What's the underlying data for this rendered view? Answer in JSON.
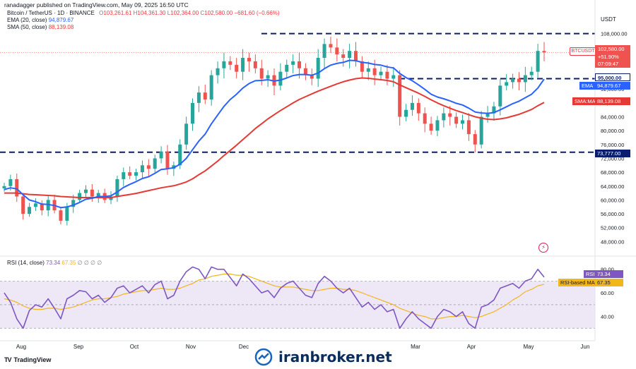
{
  "header": {
    "publisher_line": "ranadagger published on TradingView.com, May 09, 2025 16:50 UTC"
  },
  "symbol_legend": {
    "symbol": "Bitcoin / TetherUS · 1D · BINANCE",
    "open_label": "O",
    "open": "103,261.61",
    "high_label": "H",
    "high": "104,361.30",
    "low_label": "L",
    "low": "102,364.00",
    "close_label": "C",
    "close": "102,580.00",
    "change": "−681.60 (−0.66%)"
  },
  "indicators": {
    "ema": {
      "label": "EMA (20, close)",
      "value": "94,879.67",
      "color": "#2962ff"
    },
    "sma": {
      "label": "SMA (50, close)",
      "value": "88,139.08",
      "color": "#e53935"
    },
    "rsi": {
      "label": "RSI (14, close)",
      "value": "73.34",
      "ma_value": "67.35",
      "zeros": "∅ ∅ ∅ ∅",
      "color": "#7e57c2",
      "ma_color": "#f2b61d"
    }
  },
  "price_axis": {
    "currency": "USDT",
    "ticks": [
      "108,000.00",
      "104,000.00",
      "96,000.00",
      "92,000.00",
      "88,000.00",
      "84,000.00",
      "80,000.00",
      "76,000.00",
      "72,000.00",
      "68,000.00",
      "64,000.00",
      "60,000.00",
      "56,000.00",
      "52,000.00",
      "48,000.00"
    ],
    "ticker_tag": "BTCUSDT",
    "last_price": "102,580.00",
    "last_change": "+51.90%",
    "countdown": "07:09:47",
    "level_95k": "95,000.00",
    "ema_tag_label": "EMA",
    "ema_tag_value": "94,879.67",
    "sma_tag_label": "SMA:MA",
    "sma_tag_value": "88,139.08",
    "level_73k": "73,777.00",
    "rsi_ticks": [
      "80.00",
      "60.00",
      "40.00"
    ],
    "rsi_tag_label": "RSI",
    "rsi_tag_value": "73.34",
    "rsi_ma_tag_label": "RSI-based MA",
    "rsi_ma_tag_value": "67.35"
  },
  "time_axis": {
    "labels": [
      "Aug",
      "Sep",
      "Oct",
      "Nov",
      "Dec",
      "Mar",
      "Apr",
      "May",
      "Jun"
    ]
  },
  "footer": {
    "brand": "TradingView",
    "watermark": "iranbroker.net"
  },
  "colors": {
    "up": "#26a69a",
    "down": "#ef5350",
    "ema": "#2962ff",
    "sma": "#e53935",
    "level": "#0b1d6e",
    "rsi": "#7e57c2",
    "rsi_ma": "#f2b61d",
    "rsi_band": "#ede7f6"
  },
  "chart_data": {
    "type": "candlestick",
    "title": "Bitcoin / TetherUS · 1D · BINANCE",
    "xlabel": "",
    "ylabel": "USDT",
    "ylim": [
      44000,
      112000
    ],
    "horizontal_levels": [
      108000,
      95000,
      73777
    ],
    "x_labels": [
      "Aug",
      "Sep",
      "Oct",
      "Nov",
      "Dec",
      "Mar",
      "Apr",
      "May",
      "Jun"
    ],
    "close_path": [
      64000,
      66000,
      61000,
      56000,
      58000,
      59000,
      57000,
      60000,
      57000,
      54000,
      58000,
      60000,
      62000,
      63000,
      61000,
      62000,
      60000,
      61000,
      66000,
      68000,
      67000,
      68000,
      70000,
      69000,
      72000,
      74000,
      69000,
      70000,
      76000,
      82000,
      88000,
      91000,
      89000,
      96000,
      98000,
      100000,
      99000,
      97000,
      101000,
      100000,
      98000,
      95000,
      96000,
      93000,
      97000,
      99000,
      100000,
      98000,
      96000,
      95000,
      101000,
      105000,
      104000,
      102000,
      101000,
      103000,
      100000,
      97000,
      98000,
      96000,
      97000,
      95000,
      96000,
      84000,
      86000,
      88000,
      85000,
      82000,
      80000,
      83000,
      85000,
      84000,
      82000,
      83000,
      79000,
      76000,
      84000,
      85000,
      87000,
      93000,
      94000,
      95000,
      94000,
      96000,
      97000,
      103000,
      102580
    ],
    "ema20_path": [
      63000,
      63500,
      63200,
      61500,
      60000,
      59500,
      58800,
      58700,
      58400,
      57800,
      58000,
      58500,
      59300,
      60200,
      60500,
      61000,
      61000,
      61200,
      62300,
      63600,
      64500,
      65300,
      66200,
      66700,
      67700,
      68800,
      69000,
      69300,
      70300,
      72000,
      74500,
      77000,
      79000,
      82000,
      84500,
      87000,
      89000,
      90500,
      92300,
      93600,
      94400,
      94500,
      94700,
      94300,
      94600,
      95200,
      95900,
      96200,
      96200,
      96000,
      96600,
      97900,
      98900,
      99400,
      99700,
      100300,
      100200,
      99700,
      99500,
      99100,
      98900,
      98400,
      98100,
      96500,
      95300,
      94400,
      93200,
      91900,
      90500,
      89700,
      89200,
      88600,
      87900,
      87400,
      86500,
      85400,
      85100,
      85000,
      85200,
      86000,
      86900,
      87800,
      88500,
      89500,
      90500,
      92300,
      94879
    ],
    "sma50_path": [
      62000,
      62000,
      62000,
      61800,
      61600,
      61500,
      61400,
      61300,
      61200,
      61000,
      60900,
      60800,
      60700,
      60700,
      60700,
      60700,
      60700,
      60700,
      61000,
      61300,
      61600,
      61900,
      62300,
      62700,
      63100,
      63500,
      63800,
      64100,
      64600,
      65200,
      66100,
      67300,
      68400,
      69800,
      71200,
      72800,
      74300,
      75800,
      77400,
      79000,
      80600,
      82000,
      83400,
      84600,
      85800,
      86900,
      88000,
      89000,
      89800,
      90600,
      91400,
      92100,
      92800,
      93500,
      94100,
      94600,
      95000,
      95200,
      95100,
      94900,
      94700,
      94500,
      94100,
      93200,
      92400,
      91600,
      90800,
      89900,
      88900,
      88000,
      87200,
      86500,
      85800,
      85200,
      84600,
      84000,
      83600,
      83300,
      83200,
      83400,
      83700,
      84200,
      84700,
      85400,
      86100,
      87200,
      88139
    ],
    "rsi": {
      "last": 73.34,
      "ma_last": 67.35,
      "ylim": [
        20,
        90
      ],
      "bands": [
        30,
        50,
        70
      ],
      "path": [
        60,
        52,
        38,
        30,
        45,
        50,
        48,
        55,
        47,
        38,
        55,
        58,
        62,
        61,
        55,
        58,
        52,
        56,
        64,
        66,
        60,
        63,
        66,
        60,
        67,
        70,
        55,
        58,
        70,
        78,
        82,
        80,
        72,
        82,
        80,
        80,
        73,
        66,
        76,
        72,
        66,
        60,
        62,
        56,
        64,
        68,
        70,
        64,
        58,
        56,
        68,
        74,
        70,
        64,
        60,
        64,
        56,
        48,
        52,
        46,
        50,
        44,
        46,
        30,
        38,
        44,
        38,
        34,
        30,
        40,
        46,
        44,
        40,
        44,
        34,
        30,
        48,
        50,
        54,
        64,
        66,
        68,
        64,
        70,
        72,
        80,
        73.34
      ],
      "ma_path": [
        55,
        54,
        52,
        49,
        47,
        46,
        46,
        47,
        47,
        46,
        47,
        48,
        50,
        52,
        54,
        55,
        55,
        56,
        57,
        59,
        60,
        61,
        62,
        62,
        63,
        64,
        63,
        63,
        64,
        66,
        68,
        71,
        72,
        74,
        75,
        76,
        76,
        75,
        75,
        74,
        72,
        70,
        68,
        66,
        65,
        65,
        65,
        64,
        63,
        62,
        62,
        63,
        64,
        64,
        63,
        63,
        62,
        60,
        58,
        56,
        54,
        52,
        50,
        47,
        45,
        43,
        41,
        40,
        38,
        38,
        39,
        40,
        40,
        41,
        40,
        39,
        40,
        42,
        44,
        47,
        50,
        54,
        57,
        61,
        63,
        66,
        67.35
      ]
    }
  }
}
